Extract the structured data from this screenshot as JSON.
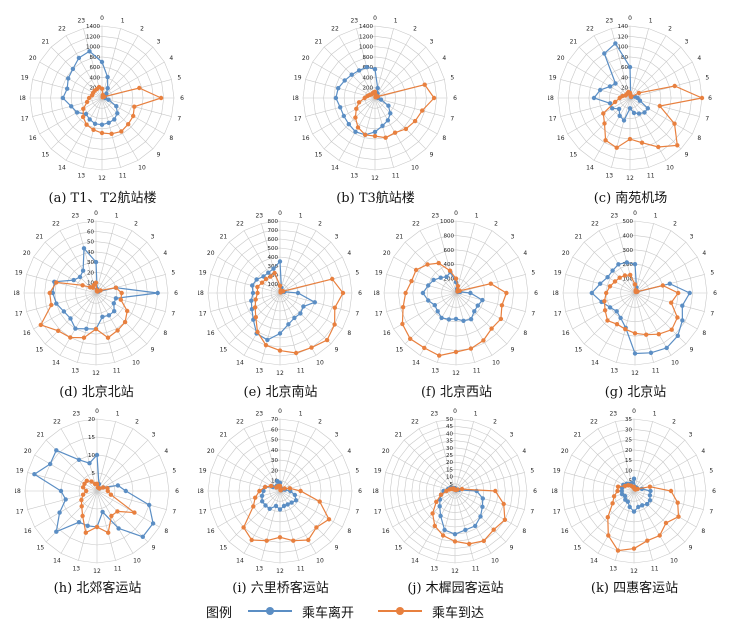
{
  "legend": {
    "title": "图例",
    "depart_label": "乘车离开",
    "arrive_label": "乘车到达"
  },
  "colors": {
    "depart": "#5b8ec4",
    "arrive": "#e8803f",
    "grid": "#c8c8c8"
  },
  "chart_data": [
    {
      "type": "radar",
      "caption": "(a) T1、T2航站楼",
      "ticks": [
        200,
        400,
        600,
        800,
        1000,
        1200,
        1400
      ],
      "rmax": 1400,
      "hours": [
        "0",
        "1",
        "2",
        "3",
        "4",
        "5",
        "6",
        "7",
        "8",
        "9",
        "10",
        "11",
        "12",
        "13",
        "14",
        "15",
        "16",
        "17",
        "18",
        "19",
        "20",
        "21",
        "22",
        "23"
      ],
      "series": [
        {
          "name": "乘车离开",
          "values": [
            700,
            420,
            220,
            120,
            60,
            50,
            60,
            130,
            320,
            420,
            480,
            500,
            520,
            520,
            480,
            440,
            560,
            620,
            760,
            700,
            760,
            800,
            900,
            940
          ]
        },
        {
          "name": "乘车到达",
          "values": [
            180,
            60,
            30,
            20,
            50,
            750,
            1150,
            650,
            700,
            720,
            750,
            720,
            680,
            640,
            600,
            520,
            420,
            300,
            250,
            200,
            200,
            200,
            200,
            220
          ]
        }
      ]
    },
    {
      "type": "radar",
      "caption": "(b) T3航站楼",
      "ticks": [
        200,
        400,
        600,
        800,
        1000,
        1200,
        1400
      ],
      "rmax": 1400,
      "hours": [
        "0",
        "1",
        "2",
        "3",
        "4",
        "5",
        "6",
        "7",
        "8",
        "9",
        "10",
        "11",
        "12",
        "13",
        "14",
        "15",
        "16",
        "17",
        "18",
        "19",
        "20",
        "21",
        "22",
        "23"
      ],
      "series": [
        {
          "name": "乘车离开",
          "values": [
            560,
            200,
            100,
            60,
            40,
            40,
            60,
            120,
            300,
            420,
            500,
            560,
            660,
            740,
            760,
            720,
            700,
            700,
            760,
            740,
            680,
            640,
            620,
            620
          ]
        },
        {
          "name": "乘车到达",
          "values": [
            120,
            60,
            20,
            20,
            60,
            1000,
            1150,
            950,
            900,
            850,
            780,
            800,
            740,
            740,
            660,
            540,
            420,
            320,
            200,
            150,
            120,
            100,
            100,
            110
          ]
        }
      ]
    },
    {
      "type": "radar",
      "caption": "(c) 南苑机场",
      "ticks": [
        20,
        40,
        60,
        80,
        100,
        120,
        140
      ],
      "rmax": 140,
      "hours": [
        "0",
        "1",
        "2",
        "3",
        "4",
        "5",
        "6",
        "7",
        "8",
        "9",
        "10",
        "11",
        "12",
        "13",
        "14",
        "15",
        "16",
        "17",
        "18",
        "19",
        "20",
        "21",
        "22",
        "23"
      ],
      "series": [
        {
          "name": "乘车离开",
          "values": [
            60,
            5,
            4,
            3,
            3,
            10,
            15,
            20,
            40,
            40,
            35,
            30,
            20,
            45,
            40,
            30,
            40,
            40,
            70,
            60,
            45,
            40,
            100,
            110
          ]
        },
        {
          "name": "乘车到达",
          "values": [
            10,
            5,
            4,
            3,
            20,
            90,
            140,
            60,
            100,
            130,
            110,
            90,
            80,
            100,
            95,
            70,
            60,
            30,
            20,
            15,
            10,
            10,
            10,
            12
          ]
        }
      ]
    },
    {
      "type": "radar",
      "caption": "(d) 北京北站",
      "ticks": [
        10,
        20,
        30,
        40,
        50,
        60,
        70
      ],
      "rmax": 70,
      "hours": [
        "0",
        "1",
        "2",
        "3",
        "4",
        "5",
        "6",
        "7",
        "8",
        "9",
        "10",
        "11",
        "12",
        "13",
        "14",
        "15",
        "16",
        "17",
        "18",
        "19",
        "20",
        "21",
        "22",
        "23"
      ],
      "series": [
        {
          "name": "乘车离开",
          "values": [
            30,
            4,
            3,
            3,
            3,
            20,
            60,
            20,
            20,
            25,
            25,
            24,
            35,
            36,
            40,
            35,
            36,
            40,
            42,
            42,
            25,
            22,
            25,
            45
          ]
        },
        {
          "name": "乘车到达",
          "values": [
            10,
            3,
            2,
            2,
            5,
            20,
            25,
            25,
            35,
            40,
            42,
            45,
            35,
            45,
            50,
            52,
            62,
            45,
            45,
            40,
            15,
            8,
            6,
            8
          ]
        }
      ]
    },
    {
      "type": "radar",
      "caption": "(e) 北京南站",
      "ticks": [
        100,
        200,
        300,
        400,
        500,
        600,
        700,
        800
      ],
      "rmax": 800,
      "hours": [
        "0",
        "1",
        "2",
        "3",
        "4",
        "5",
        "6",
        "7",
        "8",
        "9",
        "10",
        "11",
        "12",
        "13",
        "14",
        "15",
        "16",
        "17",
        "18",
        "19",
        "20",
        "21",
        "22",
        "23"
      ],
      "series": [
        {
          "name": "乘车离开",
          "values": [
            350,
            60,
            30,
            20,
            20,
            50,
            200,
            400,
            300,
            320,
            320,
            360,
            450,
            540,
            520,
            420,
            360,
            330,
            300,
            320,
            300,
            260,
            260,
            280
          ]
        },
        {
          "name": "乘车到达",
          "values": [
            80,
            30,
            20,
            10,
            40,
            600,
            700,
            630,
            700,
            740,
            700,
            690,
            640,
            600,
            500,
            380,
            320,
            280,
            250,
            260,
            230,
            220,
            210,
            230
          ]
        }
      ]
    },
    {
      "type": "radar",
      "caption": "(f) 北京西站",
      "ticks": [
        200,
        400,
        600,
        800,
        1000
      ],
      "rmax": 1000,
      "hours": [
        "0",
        "1",
        "2",
        "3",
        "4",
        "5",
        "6",
        "7",
        "8",
        "9",
        "10",
        "11",
        "12",
        "13",
        "14",
        "15",
        "16",
        "17",
        "18",
        "19",
        "20",
        "21",
        "22",
        "23"
      ],
      "series": [
        {
          "name": "乘车离开",
          "values": [
            150,
            60,
            40,
            30,
            30,
            60,
            200,
            380,
            350,
            360,
            420,
            400,
            360,
            380,
            400,
            360,
            340,
            400,
            460,
            400,
            360,
            300,
            260,
            300
          ]
        },
        {
          "name": "乘车到达",
          "values": [
            200,
            100,
            50,
            30,
            60,
            500,
            700,
            660,
            720,
            700,
            760,
            800,
            820,
            900,
            880,
            900,
            860,
            760,
            700,
            640,
            640,
            560,
            480,
            320
          ]
        }
      ]
    },
    {
      "type": "radar",
      "caption": "(g) 北京站",
      "ticks": [
        100,
        200,
        300,
        400,
        500
      ],
      "rmax": 500,
      "hours": [
        "0",
        "1",
        "2",
        "3",
        "4",
        "5",
        "6",
        "7",
        "8",
        "9",
        "10",
        "11",
        "12",
        "13",
        "14",
        "15",
        "16",
        "17",
        "18",
        "19",
        "20",
        "21",
        "22",
        "23"
      ],
      "series": [
        {
          "name": "乘车离开",
          "values": [
            200,
            40,
            20,
            15,
            15,
            250,
            380,
            340,
            380,
            420,
            440,
            430,
            420,
            250,
            200,
            180,
            200,
            240,
            300,
            250,
            220,
            220,
            230,
            220
          ]
        },
        {
          "name": "乘车到达",
          "values": [
            60,
            20,
            10,
            10,
            20,
            200,
            300,
            260,
            340,
            360,
            330,
            300,
            280,
            260,
            250,
            270,
            240,
            220,
            200,
            180,
            160,
            150,
            140,
            130
          ]
        }
      ]
    },
    {
      "type": "radar",
      "caption": "(h) 北郊客运站",
      "ticks": [
        5,
        10,
        15,
        20
      ],
      "rmax": 20,
      "hours": [
        "0",
        "1",
        "2",
        "3",
        "4",
        "5",
        "6",
        "7",
        "8",
        "9",
        "10",
        "11",
        "12",
        "13",
        "14",
        "15",
        "16",
        "17",
        "18",
        "19",
        "20",
        "21",
        "22",
        "23"
      ],
      "series": [
        {
          "name": "乘车离开",
          "values": [
            10,
            2,
            1,
            1,
            2,
            6,
            8,
            15,
            18,
            18,
            12,
            6,
            10,
            10,
            10,
            16,
            12,
            9,
            10,
            18,
            15,
            16,
            10,
            8
          ]
        },
        {
          "name": "乘车到达",
          "values": [
            2,
            1,
            1,
            1,
            2,
            3,
            3,
            4,
            12,
            8,
            8,
            12,
            10,
            12,
            8,
            6,
            5,
            4,
            3,
            4,
            4,
            4,
            3,
            2
          ]
        }
      ]
    },
    {
      "type": "radar",
      "caption": "(i) 六里桥客运站",
      "ticks": [
        10,
        20,
        30,
        40,
        50,
        60,
        70
      ],
      "rmax": 70,
      "hours": [
        "0",
        "1",
        "2",
        "3",
        "4",
        "5",
        "6",
        "7",
        "8",
        "9",
        "10",
        "11",
        "12",
        "13",
        "14",
        "15",
        "16",
        "17",
        "18",
        "19",
        "20",
        "21",
        "22",
        "23"
      ],
      "series": [
        {
          "name": "乘车离开",
          "values": [
            8,
            3,
            2,
            2,
            2,
            5,
            10,
            15,
            18,
            16,
            15,
            15,
            18,
            15,
            20,
            20,
            20,
            18,
            16,
            15,
            8,
            5,
            6,
            10
          ]
        },
        {
          "name": "乘车到达",
          "values": [
            5,
            2,
            1,
            1,
            5,
            10,
            20,
            40,
            55,
            50,
            55,
            50,
            45,
            50,
            55,
            50,
            30,
            25,
            20,
            15,
            10,
            5,
            5,
            5
          ]
        }
      ]
    },
    {
      "type": "radar",
      "caption": "(j) 木樨园客运站",
      "ticks": [
        5,
        10,
        15,
        20,
        25,
        30,
        35,
        40,
        45,
        50
      ],
      "rmax": 50,
      "hours": [
        "0",
        "1",
        "2",
        "3",
        "4",
        "5",
        "6",
        "7",
        "8",
        "9",
        "10",
        "11",
        "12",
        "13",
        "14",
        "15",
        "16",
        "17",
        "18",
        "19",
        "20",
        "21",
        "22",
        "23"
      ],
      "series": [
        {
          "name": "乘车离开",
          "values": [
            2,
            1,
            1,
            1,
            1,
            3,
            15,
            20,
            22,
            25,
            28,
            28,
            30,
            28,
            20,
            15,
            12,
            10,
            8,
            5,
            4,
            3,
            2,
            2
          ]
        },
        {
          "name": "乘车到达",
          "values": [
            1,
            1,
            1,
            1,
            2,
            5,
            28,
            35,
            40,
            38,
            40,
            38,
            35,
            32,
            28,
            22,
            15,
            10,
            6,
            4,
            3,
            2,
            2,
            1
          ]
        }
      ]
    },
    {
      "type": "radar",
      "caption": "(k) 四惠客运站",
      "ticks": [
        5,
        10,
        15,
        20,
        25,
        30,
        35
      ],
      "rmax": 35,
      "hours": [
        "0",
        "1",
        "2",
        "3",
        "4",
        "5",
        "6",
        "7",
        "8",
        "9",
        "10",
        "11",
        "12",
        "13",
        "14",
        "15",
        "16",
        "17",
        "18",
        "19",
        "20",
        "21",
        "22",
        "23"
      ],
      "series": [
        {
          "name": "乘车离开",
          "values": [
            6,
            2,
            2,
            2,
            2,
            4,
            8,
            8,
            9,
            9,
            8,
            8,
            10,
            8,
            6,
            6,
            5,
            6,
            6,
            6,
            6,
            5,
            4,
            4
          ]
        },
        {
          "name": "乘车到达",
          "values": [
            2,
            1,
            1,
            1,
            2,
            8,
            18,
            22,
            25,
            22,
            25,
            25,
            28,
            30,
            25,
            18,
            12,
            10,
            8,
            8,
            5,
            4,
            3,
            2
          ]
        }
      ]
    }
  ]
}
